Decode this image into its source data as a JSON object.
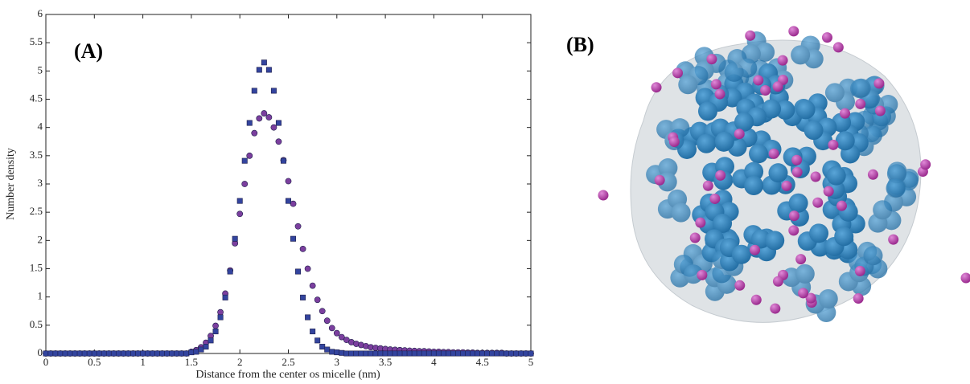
{
  "chart_data": {
    "type": "scatter",
    "annotation": "(A)",
    "xlabel": "Distance from the center os micelle (nm)",
    "ylabel": "Number density",
    "xlim": [
      0,
      5
    ],
    "ylim": [
      0,
      6
    ],
    "xticks": [
      0,
      0.5,
      1,
      1.5,
      2,
      2.5,
      3,
      3.5,
      4,
      4.5,
      5
    ],
    "yticks": [
      0,
      0.5,
      1,
      1.5,
      2,
      2.5,
      3,
      3.5,
      4,
      4.5,
      5,
      5.5,
      6
    ],
    "grid": false,
    "x": [
      0,
      0.05,
      0.1,
      0.15,
      0.2,
      0.25,
      0.3,
      0.35,
      0.4,
      0.45,
      0.5,
      0.55,
      0.6,
      0.65,
      0.7,
      0.75,
      0.8,
      0.85,
      0.9,
      0.95,
      1,
      1.05,
      1.1,
      1.15,
      1.2,
      1.25,
      1.3,
      1.35,
      1.4,
      1.45,
      1.5,
      1.55,
      1.6,
      1.65,
      1.7,
      1.75,
      1.8,
      1.85,
      1.9,
      1.95,
      2,
      2.05,
      2.1,
      2.15,
      2.2,
      2.25,
      2.3,
      2.35,
      2.4,
      2.45,
      2.5,
      2.55,
      2.6,
      2.65,
      2.7,
      2.75,
      2.8,
      2.85,
      2.9,
      2.95,
      3,
      3.05,
      3.1,
      3.15,
      3.2,
      3.25,
      3.3,
      3.35,
      3.4,
      3.45,
      3.5,
      3.55,
      3.6,
      3.65,
      3.7,
      3.75,
      3.8,
      3.85,
      3.9,
      3.95,
      4,
      4.05,
      4.1,
      4.15,
      4.2,
      4.25,
      4.3,
      4.35,
      4.4,
      4.45,
      4.5,
      4.55,
      4.6,
      4.65,
      4.7,
      4.75,
      4.8,
      4.85,
      4.9,
      4.95,
      5
    ],
    "series": [
      {
        "marker": "square",
        "color": "#33449e",
        "values": [
          0,
          0,
          0,
          0,
          0,
          0,
          0,
          0,
          0,
          0,
          0,
          0,
          0,
          0,
          0,
          0,
          0,
          0,
          0,
          0,
          0,
          0,
          0,
          0,
          0,
          0,
          0,
          0,
          0,
          0,
          0.02,
          0.03,
          0.07,
          0.12,
          0.23,
          0.39,
          0.64,
          0.99,
          1.45,
          2.03,
          2.7,
          3.41,
          4.08,
          4.65,
          5.02,
          5.15,
          5.02,
          4.65,
          4.08,
          3.41,
          2.7,
          2.03,
          1.45,
          0.99,
          0.64,
          0.39,
          0.23,
          0.12,
          0.07,
          0.03,
          0.02,
          0.01,
          0,
          0,
          0,
          0,
          0,
          0,
          0,
          0,
          0,
          0,
          0,
          0,
          0,
          0,
          0,
          0,
          0,
          0,
          0,
          0,
          0,
          0,
          0,
          0,
          0,
          0,
          0,
          0,
          0,
          0,
          0,
          0,
          0,
          0,
          0,
          0,
          0,
          0,
          0
        ]
      },
      {
        "marker": "circle",
        "color": "#7b3f9e",
        "values": [
          0,
          0,
          0,
          0,
          0,
          0,
          0,
          0,
          0,
          0,
          0,
          0,
          0,
          0,
          0,
          0,
          0,
          0,
          0,
          0,
          0,
          0,
          0,
          0,
          0,
          0,
          0,
          0,
          0,
          0,
          0.03,
          0.06,
          0.11,
          0.19,
          0.31,
          0.49,
          0.73,
          1.06,
          1.47,
          1.95,
          2.47,
          3,
          3.5,
          3.9,
          4.16,
          4.25,
          4.18,
          4,
          3.75,
          3.42,
          3.05,
          2.65,
          2.25,
          1.85,
          1.5,
          1.2,
          0.95,
          0.75,
          0.58,
          0.45,
          0.36,
          0.29,
          0.24,
          0.2,
          0.17,
          0.15,
          0.13,
          0.11,
          0.1,
          0.09,
          0.08,
          0.07,
          0.065,
          0.06,
          0.055,
          0.05,
          0.045,
          0.04,
          0.04,
          0.035,
          0.03,
          0.03,
          0.025,
          0.025,
          0.02,
          0.02,
          0.02,
          0.015,
          0.015,
          0.01,
          0.01,
          0.01,
          0.01,
          0.01,
          0.01,
          0,
          0,
          0,
          0,
          0,
          0
        ]
      }
    ]
  },
  "panel_b": {
    "label": "(B)"
  }
}
